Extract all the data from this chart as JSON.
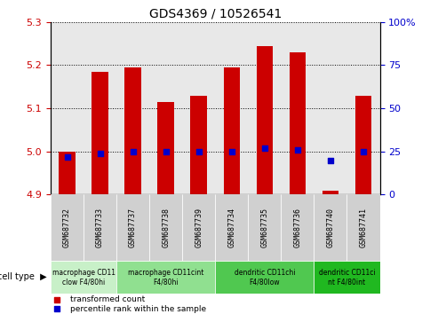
{
  "title": "GDS4369 / 10526541",
  "samples": [
    "GSM687732",
    "GSM687733",
    "GSM687737",
    "GSM687738",
    "GSM687739",
    "GSM687734",
    "GSM687735",
    "GSM687736",
    "GSM687740",
    "GSM687741"
  ],
  "transformed_counts": [
    5.0,
    5.185,
    5.195,
    5.115,
    5.13,
    5.195,
    5.245,
    5.23,
    4.91,
    5.13
  ],
  "percentile_ranks": [
    22,
    24,
    25,
    25,
    25,
    25,
    27,
    26,
    20,
    25
  ],
  "ylim_left": [
    4.9,
    5.3
  ],
  "ylim_right": [
    0,
    100
  ],
  "yticks_left": [
    4.9,
    5.0,
    5.1,
    5.2,
    5.3
  ],
  "yticks_right": [
    0,
    25,
    50,
    75,
    100
  ],
  "cell_type_groups": [
    {
      "label": "macrophage CD11\nclow F4/80hi",
      "label2": "macrophage CD1\n1clow F4/80hi",
      "start": 0,
      "end": 2,
      "color": "#c8f0c8"
    },
    {
      "label": "macrophage CD11cint\nF4/80hi",
      "label2": "macrophage CD11cint\nF4/80hi",
      "start": 2,
      "end": 5,
      "color": "#90e090"
    },
    {
      "label": "dendritic CD11chi\nF4/80low",
      "label2": "dendritic CD11chi\nF4/80low",
      "start": 5,
      "end": 8,
      "color": "#50c850"
    },
    {
      "label": "dendritic CD11ci\nnt F4/80int",
      "label2": "dendritic CD11ci\nnt F4/80int",
      "start": 8,
      "end": 10,
      "color": "#20b820"
    }
  ],
  "bar_color": "#cc0000",
  "dot_color": "#0000cc",
  "bar_width": 0.5,
  "dot_size": 25,
  "plot_bg": "#e8e8e8",
  "sample_box_color": "#d0d0d0"
}
